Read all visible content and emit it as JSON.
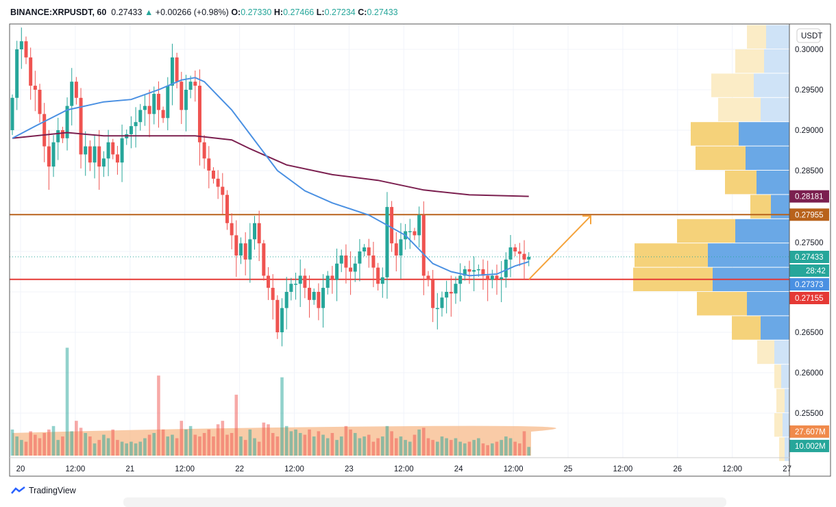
{
  "header": {
    "symbol": "BINANCE:XRPUSDT, 60",
    "last": "0.27433",
    "change": "+0.00266 (+0.98%)",
    "o_label": "O:",
    "o": "0.27330",
    "h_label": "H:",
    "h": "0.27466",
    "l_label": "L:",
    "l": "0.27234",
    "c_label": "C:",
    "c": "0.27433"
  },
  "currency": "USDT",
  "colors": {
    "up": "#26a69a",
    "down": "#ef5350",
    "ma_fast": "#4a90e2",
    "ma_slow": "#7b1f4f",
    "resistance": "#b8621b",
    "support": "#e53935",
    "arrow": "#f5a33b",
    "vol_ma": "#f7b98a"
  },
  "price_axis": [
    "0.30000",
    "0.29500",
    "0.29000",
    "0.28500",
    "0.27500",
    "0.26500",
    "0.26000",
    "0.25500"
  ],
  "price_tags": [
    {
      "text": "0.28181",
      "color": "#7b1f4f"
    },
    {
      "text": "0.27955",
      "color": "#b8621b"
    },
    {
      "text": "0.27433",
      "color": "#26a69a"
    },
    {
      "text": "28:42",
      "color": "#26a69a"
    },
    {
      "text": "0.27373",
      "color": "#4a90e2"
    },
    {
      "text": "0.27155",
      "color": "#e53935"
    },
    {
      "text": "27.607M",
      "color": "#f08a4b"
    },
    {
      "text": "10.002M",
      "color": "#26a69a"
    }
  ],
  "time_axis": [
    "20",
    "12:00",
    "21",
    "12:00",
    "22",
    "12:00",
    "23",
    "12:00",
    "24",
    "12:00",
    "25",
    "12:00",
    "26",
    "12:00",
    "27"
  ],
  "logo": "TradingView",
  "chart_data": {
    "type": "candlestick",
    "interval": "60",
    "closes": [
      0.294,
      0.3,
      0.301,
      0.299,
      0.2955,
      0.295,
      0.292,
      0.288,
      0.2855,
      0.2885,
      0.29,
      0.289,
      0.293,
      0.296,
      0.294,
      0.287,
      0.288,
      0.286,
      0.288,
      0.2855,
      0.2865,
      0.2885,
      0.287,
      0.286,
      0.289,
      0.2895,
      0.2905,
      0.291,
      0.2925,
      0.293,
      0.292,
      0.2945,
      0.2925,
      0.2915,
      0.2955,
      0.299,
      0.296,
      0.2925,
      0.295,
      0.296,
      0.2955,
      0.2885,
      0.2865,
      0.285,
      0.284,
      0.283,
      0.282,
      0.2785,
      0.277,
      0.2745,
      0.276,
      0.274,
      0.2765,
      0.2785,
      0.276,
      0.272,
      0.2705,
      0.269,
      0.265,
      0.268,
      0.27,
      0.271,
      0.271,
      0.272,
      0.2705,
      0.269,
      0.27,
      0.268,
      0.2705,
      0.272,
      0.2715,
      0.2735,
      0.2745,
      0.273,
      0.2725,
      0.2735,
      0.275,
      0.2755,
      0.2745,
      0.273,
      0.271,
      0.2718,
      0.2805,
      0.276,
      0.2745,
      0.2765,
      0.2775,
      0.2775,
      0.277,
      0.2795,
      0.272,
      0.2715,
      0.268,
      0.268,
      0.2693,
      0.27,
      0.2698,
      0.271,
      0.272,
      0.2728,
      0.2725,
      0.2727,
      0.2728,
      0.272,
      0.2715,
      0.272,
      0.2716,
      0.2718,
      0.274,
      0.2755,
      0.275,
      0.2747,
      0.274,
      0.27433
    ],
    "volumes_m": [
      30,
      22,
      18,
      16,
      28,
      24,
      20,
      26,
      30,
      34,
      18,
      22,
      124,
      28,
      40,
      32,
      26,
      22,
      14,
      18,
      24,
      20,
      30,
      18,
      16,
      14,
      16,
      14,
      16,
      20,
      24,
      26,
      92,
      30,
      22,
      24,
      20,
      40,
      30,
      34,
      24,
      22,
      26,
      30,
      22,
      36,
      40,
      24,
      26,
      70,
      22,
      18,
      30,
      20,
      16,
      38,
      36,
      26,
      22,
      90,
      34,
      28,
      30,
      26,
      24,
      30,
      22,
      28,
      24,
      20,
      26,
      18,
      22,
      34,
      30,
      26,
      20,
      22,
      24,
      16,
      20,
      22,
      34,
      28,
      20,
      22,
      18,
      16,
      24,
      30,
      32,
      20,
      18,
      16,
      22,
      20,
      18,
      20,
      16,
      14,
      16,
      18,
      20,
      14,
      12,
      14,
      16,
      18,
      22,
      20,
      16,
      14,
      28,
      10
    ],
    "ma_fast": [
      [
        0,
        0.289
      ],
      [
        5,
        0.2905
      ],
      [
        12,
        0.2925
      ],
      [
        20,
        0.2935
      ],
      [
        26,
        0.2938
      ],
      [
        32,
        0.295
      ],
      [
        37,
        0.2962
      ],
      [
        40,
        0.2965
      ],
      [
        42,
        0.296
      ],
      [
        48,
        0.2925
      ],
      [
        54,
        0.288
      ],
      [
        58,
        0.285
      ],
      [
        64,
        0.2825
      ],
      [
        70,
        0.281
      ],
      [
        78,
        0.2795
      ],
      [
        86,
        0.277
      ],
      [
        92,
        0.2735
      ],
      [
        96,
        0.2725
      ],
      [
        100,
        0.272
      ],
      [
        106,
        0.2722
      ],
      [
        110,
        0.2732
      ],
      [
        113,
        0.27373
      ]
    ],
    "ma_slow": [
      [
        0,
        0.289
      ],
      [
        12,
        0.2897
      ],
      [
        20,
        0.2893
      ],
      [
        30,
        0.2893
      ],
      [
        40,
        0.2893
      ],
      [
        48,
        0.2888
      ],
      [
        52,
        0.2877
      ],
      [
        60,
        0.2857
      ],
      [
        70,
        0.2845
      ],
      [
        80,
        0.2838
      ],
      [
        90,
        0.2826
      ],
      [
        100,
        0.282
      ],
      [
        113,
        0.28181
      ]
    ],
    "volume_ma_m": 27.607,
    "last_volume_m": 10.002,
    "horizontal_lines": {
      "resistance": 0.27955,
      "support": 0.27155,
      "last_price": 0.27433
    },
    "projection_arrow": {
      "from": 0.27155,
      "to": 0.27955
    },
    "volume_profile": [
      {
        "price_low": 0.3,
        "up": 34,
        "down": 28,
        "value_area": false
      },
      {
        "price_low": 0.297,
        "up": 37,
        "down": 42,
        "value_area": false
      },
      {
        "price_low": 0.294,
        "up": 52,
        "down": 62,
        "value_area": false
      },
      {
        "price_low": 0.291,
        "up": 42,
        "down": 62,
        "value_area": false
      },
      {
        "price_low": 0.288,
        "up": 74,
        "down": 70,
        "value_area": true
      },
      {
        "price_low": 0.285,
        "up": 64,
        "down": 73,
        "value_area": true
      },
      {
        "price_low": 0.282,
        "up": 48,
        "down": 46,
        "value_area": true
      },
      {
        "price_low": 0.279,
        "up": 27,
        "down": 30,
        "value_area": true
      },
      {
        "price_low": 0.276,
        "up": 79,
        "down": 85,
        "value_area": true
      },
      {
        "price_low": 0.273,
        "up": 119,
        "down": 107,
        "value_area": true
      },
      {
        "price_low": 0.27,
        "up": 112,
        "down": 116,
        "value_area": true
      },
      {
        "price_low": 0.267,
        "up": 62,
        "down": 73,
        "value_area": true
      },
      {
        "price_low": 0.264,
        "up": 42,
        "down": 42,
        "value_area": true
      },
      {
        "price_low": 0.261,
        "up": 22,
        "down": 25,
        "value_area": false
      },
      {
        "price_low": 0.258,
        "up": 12,
        "down": 10,
        "value_area": false
      },
      {
        "price_low": 0.255,
        "up": 7,
        "down": 12,
        "value_area": false
      },
      {
        "price_low": 0.252,
        "up": 10,
        "down": 12,
        "value_area": false
      },
      {
        "price_low": 0.249,
        "up": 7,
        "down": 8,
        "value_area": false
      }
    ]
  }
}
